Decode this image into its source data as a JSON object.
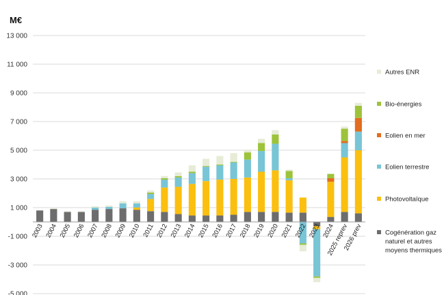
{
  "chart_data": {
    "type": "bar",
    "stacked": true,
    "unit_label": "M€",
    "categories": [
      "2003",
      "2004",
      "2005",
      "2006",
      "2007",
      "2008",
      "2009",
      "2010",
      "2011",
      "2012",
      "2013",
      "2014",
      "2015",
      "2016",
      "2017",
      "2018",
      "2019",
      "2020",
      "2021",
      "2022",
      "2023",
      "2024",
      "2025 reprev",
      "2026 prev"
    ],
    "y_ticks": [
      "13 000",
      "11 000",
      "9 000",
      "7 000",
      "5 000",
      "3 000",
      "1 000",
      "-1 000",
      "-3 000",
      "-5 000"
    ],
    "ylim": [
      -5000,
      13000
    ],
    "grid": true,
    "legend_position": "right",
    "series": [
      {
        "name": "Cogénération gaz naturel et autres moyens thermiques",
        "color": "#6d6d6d",
        "values": [
          800,
          900,
          700,
          700,
          850,
          900,
          950,
          850,
          750,
          700,
          550,
          450,
          450,
          450,
          500,
          700,
          700,
          700,
          650,
          650,
          -300,
          350,
          700,
          600
        ]
      },
      {
        "name": "Photovoltaïque",
        "color": "#fbbf0f",
        "values": [
          0,
          0,
          0,
          0,
          0,
          0,
          0,
          150,
          850,
          1700,
          1900,
          2200,
          2400,
          2500,
          2500,
          2400,
          2800,
          2900,
          2250,
          1050,
          -200,
          2450,
          3800,
          4400
        ]
      },
      {
        "name": "Eolien terrestre",
        "color": "#78c5d6",
        "values": [
          0,
          0,
          0,
          0,
          150,
          150,
          350,
          300,
          350,
          550,
          650,
          750,
          1000,
          1000,
          1150,
          1250,
          1450,
          1850,
          150,
          -1500,
          -3300,
          0,
          1000,
          1300
        ]
      },
      {
        "name": "Eolien en mer",
        "color": "#e36c1e",
        "values": [
          0,
          0,
          0,
          0,
          0,
          0,
          0,
          0,
          0,
          0,
          0,
          0,
          0,
          0,
          0,
          0,
          0,
          0,
          0,
          0,
          0,
          250,
          150,
          950
        ]
      },
      {
        "name": "Bio-énergies",
        "color": "#9dc33b",
        "values": [
          0,
          0,
          0,
          0,
          0,
          0,
          0,
          0,
          100,
          100,
          100,
          100,
          50,
          50,
          50,
          500,
          550,
          650,
          500,
          -100,
          -100,
          300,
          850,
          850
        ]
      },
      {
        "name": "Autres ENR",
        "color": "#e6ecd6",
        "values": [
          0,
          50,
          50,
          50,
          100,
          100,
          150,
          150,
          150,
          150,
          250,
          450,
          500,
          600,
          600,
          200,
          300,
          300,
          100,
          -450,
          -300,
          0,
          150,
          200
        ]
      }
    ]
  }
}
